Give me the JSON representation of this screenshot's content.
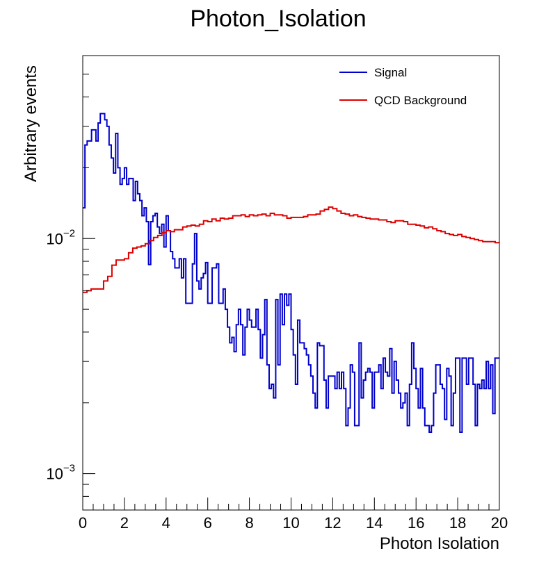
{
  "chart_data": {
    "type": "line",
    "style": "step-histogram",
    "title": "Photon_Isolation",
    "xlabel": "Photon Isolation",
    "ylabel": "Arbitrary events",
    "xlim": [
      0,
      20
    ],
    "ylim": [
      0.0007,
      0.06
    ],
    "yscale": "log",
    "x_ticks": [
      {
        "value": 0,
        "label": "0"
      },
      {
        "value": 2,
        "label": "2"
      },
      {
        "value": 4,
        "label": "4"
      },
      {
        "value": 6,
        "label": "6"
      },
      {
        "value": 8,
        "label": "8"
      },
      {
        "value": 10,
        "label": "10"
      },
      {
        "value": 12,
        "label": "12"
      },
      {
        "value": 14,
        "label": "14"
      },
      {
        "value": 16,
        "label": "16"
      },
      {
        "value": 18,
        "label": "18"
      },
      {
        "value": 20,
        "label": "20"
      }
    ],
    "y_ticks": [
      {
        "value": 0.01,
        "label_base": "10",
        "label_exp": "−2"
      },
      {
        "value": 0.001,
        "label_base": "10",
        "label_exp": "−3"
      }
    ],
    "bin_width": 0.2,
    "legend_position": "top-right",
    "grid": false,
    "series": [
      {
        "name": "Signal",
        "color": "#0000cc",
        "values": [
          0.0135,
          0.025,
          0.026,
          0.026,
          0.029,
          0.029,
          0.026,
          0.031,
          0.034,
          0.034,
          0.032,
          0.03,
          0.025,
          0.022,
          0.019,
          0.028,
          0.02,
          0.017,
          0.018,
          0.02,
          0.017,
          0.018,
          0.018,
          0.0145,
          0.0175,
          0.0155,
          0.0145,
          0.0125,
          0.0135,
          0.0118,
          0.00775,
          0.0118,
          0.0125,
          0.0128,
          0.0112,
          0.0105,
          0.0115,
          0.0092,
          0.0125,
          0.0108,
          0.0088,
          0.0082,
          0.0075,
          0.0075,
          0.0082,
          0.0068,
          0.0082,
          0.0053,
          0.0053,
          0.0053,
          0.0078,
          0.0105,
          0.0066,
          0.0061,
          0.0068,
          0.0071,
          0.0079,
          0.0053,
          0.0053,
          0.0075,
          0.0075,
          0.0078,
          0.0053,
          0.0053,
          0.0061,
          0.005,
          0.0042,
          0.0036,
          0.0038,
          0.0033,
          0.0043,
          0.005,
          0.0043,
          0.0032,
          0.0042,
          0.005,
          0.0045,
          0.0042,
          0.0042,
          0.005,
          0.0041,
          0.0031,
          0.0039,
          0.0055,
          0.0029,
          0.0023,
          0.0024,
          0.0021,
          0.0055,
          0.0029,
          0.0058,
          0.0043,
          0.0058,
          0.0052,
          0.0058,
          0.0041,
          0.0032,
          0.0024,
          0.0045,
          0.0036,
          0.0036,
          0.0034,
          0.0032,
          0.0029,
          0.0026,
          0.0022,
          0.0019,
          0.0036,
          0.0035,
          0.0035,
          0.0025,
          0.0019,
          0.0026,
          0.0026,
          0.0026,
          0.0023,
          0.0027,
          0.0023,
          0.0027,
          0.0023,
          0.0016,
          0.0019,
          0.0029,
          0.0027,
          0.0016,
          0.0016,
          0.0036,
          0.0021,
          0.0025,
          0.0027,
          0.0028,
          0.0027,
          0.0019,
          0.0027,
          0.0027,
          0.0029,
          0.0023,
          0.0031,
          0.0027,
          0.0026,
          0.0034,
          0.0022,
          0.003,
          0.0025,
          0.0022,
          0.0019,
          0.002,
          0.0022,
          0.0016,
          0.0024,
          0.0036,
          0.0028,
          0.0023,
          0.0019,
          0.0028,
          0.0019,
          0.0016,
          0.0016,
          0.0015,
          0.0016,
          0.0022,
          0.0029,
          0.0029,
          0.0024,
          0.0023,
          0.0017,
          0.0028,
          0.0026,
          0.0016,
          0.0022,
          0.0031,
          0.0031,
          0.0015,
          0.0031,
          0.0031,
          0.0024,
          0.0031,
          0.0031,
          0.0024,
          0.0016,
          0.0024,
          0.0023,
          0.0025,
          0.0023,
          0.003,
          0.0023,
          0.0029,
          0.0018,
          0.0031,
          0.0031
        ]
      },
      {
        "name": "QCD Background",
        "color": "#dd0000",
        "values": [
          0.0059,
          0.006,
          0.0061,
          0.0061,
          0.0061,
          0.0066,
          0.0069,
          0.0077,
          0.0081,
          0.0081,
          0.0082,
          0.0087,
          0.0091,
          0.0092,
          0.0093,
          0.0095,
          0.0098,
          0.0101,
          0.0103,
          0.0106,
          0.0108,
          0.0107,
          0.0109,
          0.0109,
          0.0112,
          0.0113,
          0.0114,
          0.0113,
          0.0115,
          0.0119,
          0.0118,
          0.0121,
          0.0119,
          0.0122,
          0.0121,
          0.0122,
          0.0125,
          0.0125,
          0.0126,
          0.0124,
          0.0126,
          0.0125,
          0.0126,
          0.0127,
          0.0125,
          0.0128,
          0.0126,
          0.0126,
          0.0125,
          0.0122,
          0.0123,
          0.0123,
          0.0123,
          0.0124,
          0.0126,
          0.0126,
          0.0127,
          0.0131,
          0.0133,
          0.0136,
          0.0134,
          0.0131,
          0.0128,
          0.0127,
          0.0125,
          0.0126,
          0.0124,
          0.0123,
          0.0122,
          0.0121,
          0.0121,
          0.012,
          0.012,
          0.0118,
          0.0117,
          0.0119,
          0.0119,
          0.0118,
          0.0115,
          0.0115,
          0.0114,
          0.0113,
          0.0111,
          0.0112,
          0.011,
          0.0108,
          0.0107,
          0.0105,
          0.0104,
          0.0103,
          0.0104,
          0.0102,
          0.0101,
          0.01,
          0.0099,
          0.0098,
          0.0097,
          0.0097,
          0.0097,
          0.0096
        ]
      }
    ]
  }
}
